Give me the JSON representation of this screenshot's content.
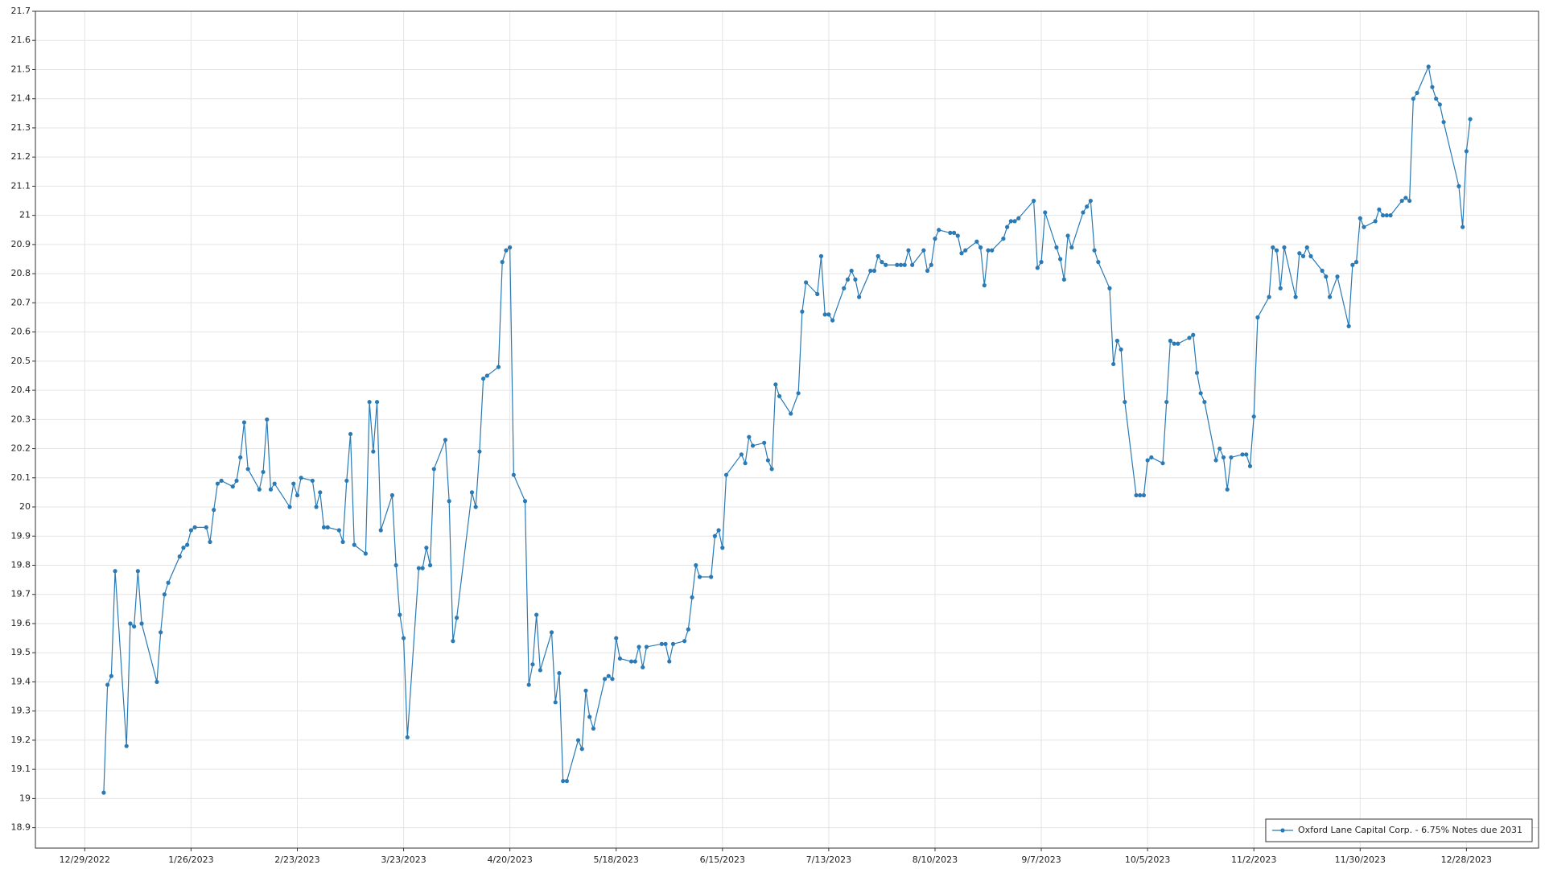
{
  "chart_data": {
    "type": "line",
    "x": [
      "1/3/2023",
      "1/4/2023",
      "1/5/2023",
      "1/6/2023",
      "1/9/2023",
      "1/10/2023",
      "1/11/2023",
      "1/12/2023",
      "1/13/2023",
      "1/17/2023",
      "1/18/2023",
      "1/19/2023",
      "1/20/2023",
      "1/23/2023",
      "1/24/2023",
      "1/25/2023",
      "1/26/2023",
      "1/27/2023",
      "1/30/2023",
      "1/31/2023",
      "2/1/2023",
      "2/2/2023",
      "2/3/2023",
      "2/6/2023",
      "2/7/2023",
      "2/8/2023",
      "2/9/2023",
      "2/10/2023",
      "2/13/2023",
      "2/14/2023",
      "2/15/2023",
      "2/16/2023",
      "2/17/2023",
      "2/21/2023",
      "2/22/2023",
      "2/23/2023",
      "2/24/2023",
      "2/27/2023",
      "2/28/2023",
      "3/1/2023",
      "3/2/2023",
      "3/3/2023",
      "3/6/2023",
      "3/7/2023",
      "3/8/2023",
      "3/9/2023",
      "3/10/2023",
      "3/13/2023",
      "3/14/2023",
      "3/15/2023",
      "3/16/2023",
      "3/17/2023",
      "3/20/2023",
      "3/21/2023",
      "3/22/2023",
      "3/23/2023",
      "3/24/2023",
      "3/27/2023",
      "3/28/2023",
      "3/29/2023",
      "3/30/2023",
      "3/31/2023",
      "4/3/2023",
      "4/4/2023",
      "4/5/2023",
      "4/6/2023",
      "4/10/2023",
      "4/11/2023",
      "4/12/2023",
      "4/13/2023",
      "4/14/2023",
      "4/17/2023",
      "4/18/2023",
      "4/19/2023",
      "4/20/2023",
      "4/21/2023",
      "4/24/2023",
      "4/25/2023",
      "4/26/2023",
      "4/27/2023",
      "4/28/2023",
      "5/1/2023",
      "5/2/2023",
      "5/3/2023",
      "5/4/2023",
      "5/5/2023",
      "5/8/2023",
      "5/9/2023",
      "5/10/2023",
      "5/11/2023",
      "5/12/2023",
      "5/15/2023",
      "5/16/2023",
      "5/17/2023",
      "5/18/2023",
      "5/19/2023",
      "5/22/2023",
      "5/23/2023",
      "5/24/2023",
      "5/25/2023",
      "5/26/2023",
      "5/30/2023",
      "5/31/2023",
      "6/1/2023",
      "6/2/2023",
      "6/5/2023",
      "6/6/2023",
      "6/7/2023",
      "6/8/2023",
      "6/9/2023",
      "6/12/2023",
      "6/13/2023",
      "6/14/2023",
      "6/15/2023",
      "6/16/2023",
      "6/20/2023",
      "6/21/2023",
      "6/22/2023",
      "6/23/2023",
      "6/26/2023",
      "6/27/2023",
      "6/28/2023",
      "6/29/2023",
      "6/30/2023",
      "7/3/2023",
      "7/5/2023",
      "7/6/2023",
      "7/7/2023",
      "7/10/2023",
      "7/11/2023",
      "7/12/2023",
      "7/13/2023",
      "7/14/2023",
      "7/17/2023",
      "7/18/2023",
      "7/19/2023",
      "7/20/2023",
      "7/21/2023",
      "7/24/2023",
      "7/25/2023",
      "7/26/2023",
      "7/27/2023",
      "7/28/2023",
      "7/31/2023",
      "8/1/2023",
      "8/2/2023",
      "8/3/2023",
      "8/4/2023",
      "8/7/2023",
      "8/8/2023",
      "8/9/2023",
      "8/10/2023",
      "8/11/2023",
      "8/14/2023",
      "8/15/2023",
      "8/16/2023",
      "8/17/2023",
      "8/18/2023",
      "8/21/2023",
      "8/22/2023",
      "8/23/2023",
      "8/24/2023",
      "8/25/2023",
      "8/28/2023",
      "8/29/2023",
      "8/30/2023",
      "8/31/2023",
      "9/1/2023",
      "9/5/2023",
      "9/6/2023",
      "9/7/2023",
      "9/8/2023",
      "9/11/2023",
      "9/12/2023",
      "9/13/2023",
      "9/14/2023",
      "9/15/2023",
      "9/18/2023",
      "9/19/2023",
      "9/20/2023",
      "9/21/2023",
      "9/22/2023",
      "9/25/2023",
      "9/26/2023",
      "9/27/2023",
      "9/28/2023",
      "9/29/2023",
      "10/2/2023",
      "10/3/2023",
      "10/4/2023",
      "10/5/2023",
      "10/6/2023",
      "10/9/2023",
      "10/10/2023",
      "10/11/2023",
      "10/12/2023",
      "10/13/2023",
      "10/16/2023",
      "10/17/2023",
      "10/18/2023",
      "10/19/2023",
      "10/20/2023",
      "10/23/2023",
      "10/24/2023",
      "10/25/2023",
      "10/26/2023",
      "10/27/2023",
      "10/30/2023",
      "10/31/2023",
      "11/1/2023",
      "11/2/2023",
      "11/3/2023",
      "11/6/2023",
      "11/7/2023",
      "11/8/2023",
      "11/9/2023",
      "11/10/2023",
      "11/13/2023",
      "11/14/2023",
      "11/15/2023",
      "11/16/2023",
      "11/17/2023",
      "11/20/2023",
      "11/21/2023",
      "11/22/2023",
      "11/24/2023",
      "11/27/2023",
      "11/28/2023",
      "11/29/2023",
      "11/30/2023",
      "12/1/2023",
      "12/4/2023",
      "12/5/2023",
      "12/6/2023",
      "12/7/2023",
      "12/8/2023",
      "12/11/2023",
      "12/12/2023",
      "12/13/2023",
      "12/14/2023",
      "12/15/2023",
      "12/18/2023",
      "12/19/2023",
      "12/20/2023",
      "12/21/2023",
      "12/22/2023",
      "12/26/2023",
      "12/27/2023",
      "12/28/2023",
      "12/29/2023"
    ],
    "series": [
      {
        "name": "Oxford Lane Capital Corp. - 6.75% Notes due 2031",
        "color": "#2a7ab5",
        "values": [
          19.02,
          19.39,
          19.42,
          19.78,
          19.18,
          19.6,
          19.59,
          19.78,
          19.6,
          19.4,
          19.57,
          19.7,
          19.74,
          19.83,
          19.86,
          19.87,
          19.92,
          19.93,
          19.93,
          19.88,
          19.99,
          20.08,
          20.09,
          20.07,
          20.09,
          20.17,
          20.29,
          20.13,
          20.06,
          20.12,
          20.3,
          20.06,
          20.08,
          20.0,
          20.08,
          20.04,
          20.1,
          20.09,
          20.0,
          20.05,
          19.93,
          19.93,
          19.92,
          19.88,
          20.09,
          20.25,
          19.87,
          19.84,
          20.36,
          20.19,
          20.36,
          19.92,
          20.04,
          19.8,
          19.63,
          19.55,
          19.21,
          19.79,
          19.79,
          19.86,
          19.8,
          20.13,
          20.23,
          20.02,
          19.54,
          19.62,
          20.05,
          20.0,
          20.19,
          20.44,
          20.45,
          20.48,
          20.84,
          20.88,
          20.89,
          20.11,
          20.02,
          19.39,
          19.46,
          19.63,
          19.44,
          19.57,
          19.33,
          19.43,
          19.06,
          19.06,
          19.2,
          19.17,
          19.37,
          19.28,
          19.24,
          19.41,
          19.42,
          19.41,
          19.55,
          19.48,
          19.47,
          19.47,
          19.52,
          19.45,
          19.52,
          19.53,
          19.53,
          19.47,
          19.53,
          19.54,
          19.58,
          19.69,
          19.8,
          19.76,
          19.76,
          19.9,
          19.92,
          19.86,
          20.11,
          20.18,
          20.15,
          20.24,
          20.21,
          20.22,
          20.16,
          20.13,
          20.42,
          20.38,
          20.32,
          20.39,
          20.67,
          20.77,
          20.73,
          20.86,
          20.66,
          20.66,
          20.64,
          20.75,
          20.78,
          20.81,
          20.78,
          20.72,
          20.81,
          20.81,
          20.86,
          20.84,
          20.83,
          20.83,
          20.83,
          20.83,
          20.88,
          20.83,
          20.88,
          20.81,
          20.83,
          20.92,
          20.95,
          20.94,
          20.94,
          20.93,
          20.87,
          20.88,
          20.91,
          20.89,
          20.76,
          20.88,
          20.88,
          20.92,
          20.96,
          20.98,
          20.98,
          20.99,
          21.05,
          20.82,
          20.84,
          21.01,
          20.89,
          20.85,
          20.78,
          20.93,
          20.89,
          21.01,
          21.03,
          21.05,
          20.88,
          20.84,
          20.75,
          20.49,
          20.57,
          20.54,
          20.36,
          20.04,
          20.04,
          20.04,
          20.16,
          20.17,
          20.15,
          20.36,
          20.57,
          20.56,
          20.56,
          20.58,
          20.59,
          20.46,
          20.39,
          20.36,
          20.16,
          20.2,
          20.17,
          20.06,
          20.17,
          20.18,
          20.18,
          20.14,
          20.31,
          20.65,
          20.72,
          20.89,
          20.88,
          20.75,
          20.89,
          20.72,
          20.87,
          20.86,
          20.89,
          20.86,
          20.81,
          20.79,
          20.72,
          20.79,
          20.62,
          20.83,
          20.84,
          20.99,
          20.96,
          20.98,
          21.02,
          21.0,
          21.0,
          21.0,
          21.05,
          21.06,
          21.05,
          21.4,
          21.42,
          21.51,
          21.44,
          21.4,
          21.38,
          21.32,
          21.1,
          20.96,
          21.22,
          21.33
        ]
      }
    ],
    "xlim": [
      "12/16/2022",
      "1/16/2024"
    ],
    "xticks": [
      "12/29/2022",
      "1/26/2023",
      "2/23/2023",
      "3/23/2023",
      "4/20/2023",
      "5/18/2023",
      "6/15/2023",
      "7/13/2023",
      "8/10/2023",
      "9/7/2023",
      "10/5/2023",
      "11/2/2023",
      "11/30/2023",
      "12/28/2023"
    ],
    "ylim": [
      18.83,
      21.7
    ],
    "yticks": [
      18.9,
      19,
      19.1,
      19.2,
      19.3,
      19.4,
      19.5,
      19.6,
      19.7,
      19.8,
      19.9,
      20,
      20.1,
      20.2,
      20.3,
      20.4,
      20.5,
      20.6,
      20.7,
      20.8,
      20.9,
      21,
      21.1,
      21.2,
      21.3,
      21.4,
      21.5,
      21.6,
      21.7
    ],
    "grid": true,
    "legend": "lower right"
  }
}
